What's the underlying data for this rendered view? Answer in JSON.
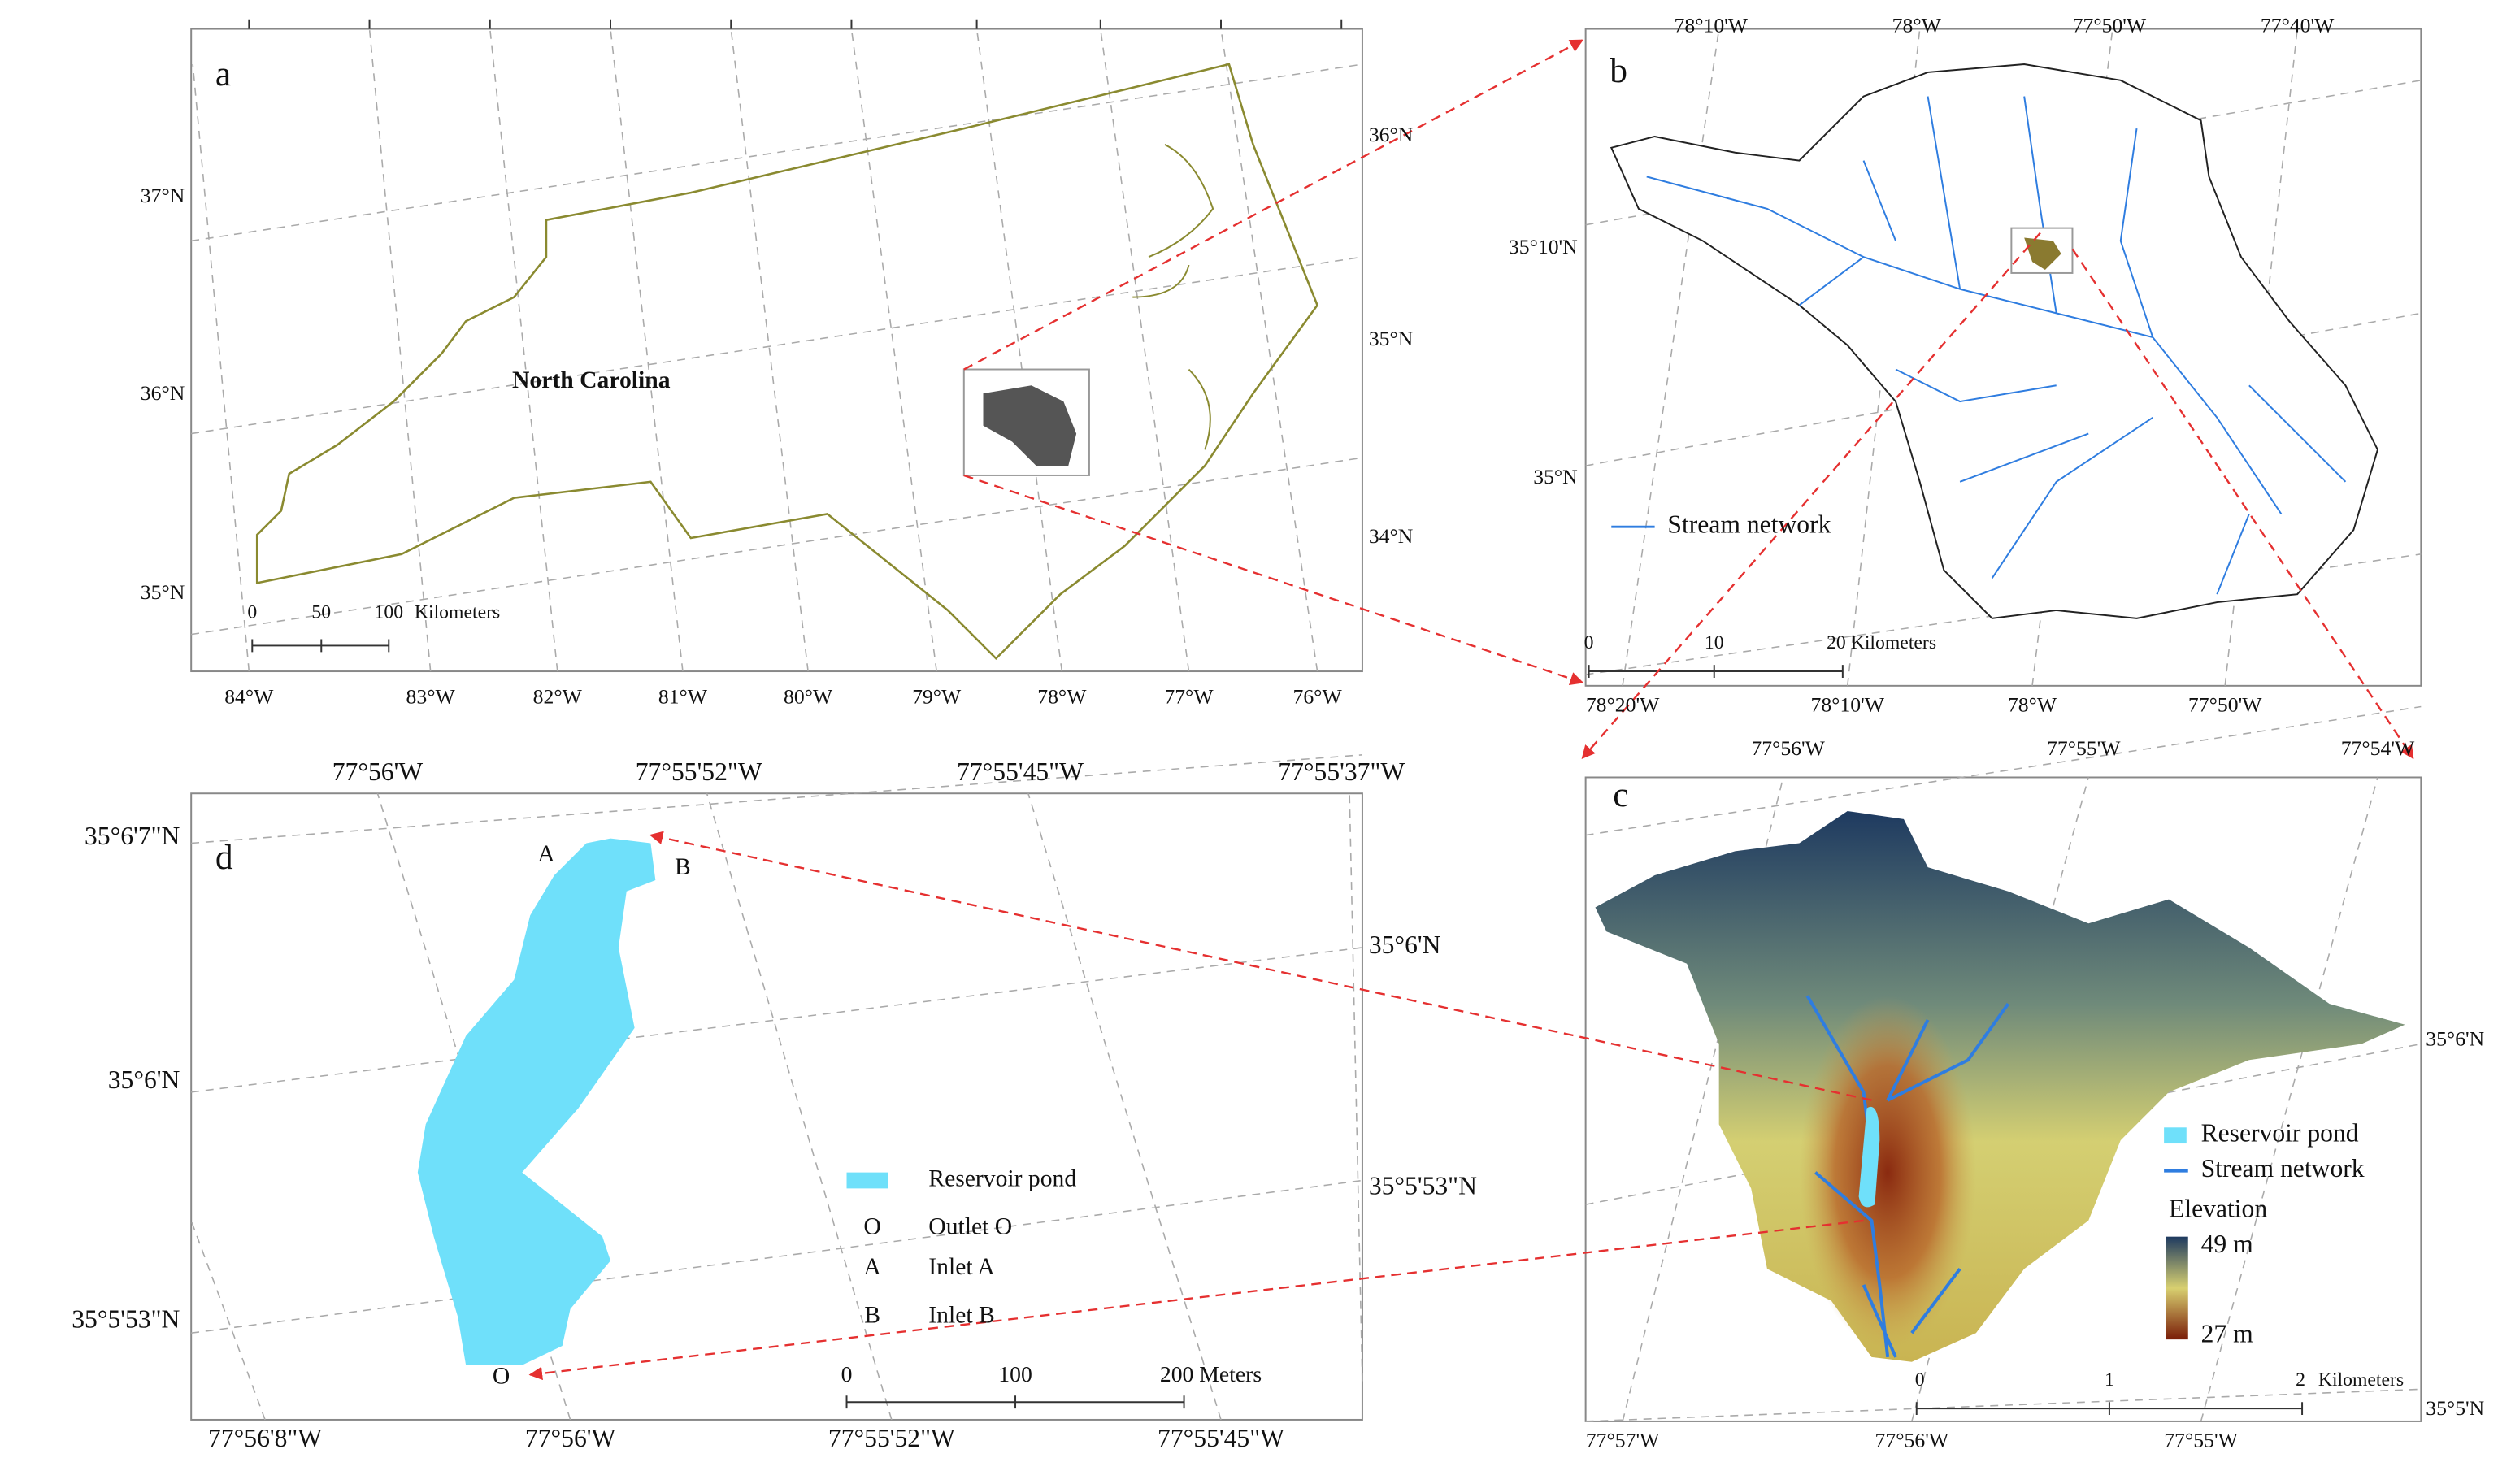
{
  "panels": {
    "a": {
      "label": "a",
      "title": "North Carolina",
      "lon_bottom": [
        "84°W",
        "83°W",
        "82°W",
        "81°W",
        "80°W",
        "79°W",
        "78°W",
        "77°W",
        "76°W"
      ],
      "lat_left": [
        "37°N",
        "36°N",
        "35°N"
      ],
      "lat_right": [
        "36°N",
        "35°N",
        "34°N"
      ],
      "scale_bar": [
        "0",
        "50",
        "100",
        "Kilometers"
      ]
    },
    "b": {
      "label": "b",
      "lon_top": [
        "78°10'W",
        "78°W",
        "77°50'W",
        "77°40'W"
      ],
      "lat_left": [
        "35°10'N",
        "35°N"
      ],
      "lon_bottom": [
        "78°20'W",
        "78°10'W",
        "78°W",
        "77°50'W"
      ],
      "legend": [
        "Stream network"
      ],
      "scale_bar": [
        "0",
        "10",
        "20",
        "Kilometers"
      ]
    },
    "c": {
      "label": "c",
      "lon_top": [
        "77°56'W",
        "77°55'W",
        "77°54'W"
      ],
      "lat_right": [
        "35°6'N",
        "35°5'N"
      ],
      "lon_bottom": [
        "77°57'W",
        "77°56'W",
        "77°55'W"
      ],
      "legend": [
        "Reservoir pond",
        "Stream network",
        "Elevation",
        "49 m",
        "27 m"
      ],
      "scale_bar": [
        "0",
        "1",
        "2",
        "Kilometers"
      ]
    },
    "d": {
      "label": "d",
      "lon_top": [
        "77°56'W",
        "77°55'52\"W",
        "77°55'45\"W",
        "77°55'37\"W"
      ],
      "lat_left": [
        "35°6'7\"N",
        "35°6'N",
        "35°5'53\"N"
      ],
      "lat_right": [
        "35°6'N",
        "35°5'53\"N"
      ],
      "lon_bottom": [
        "77°56'8\"W",
        "77°56'W",
        "77°55'52\"W",
        "77°55'45\"W"
      ],
      "points": [
        "A",
        "B",
        "O"
      ],
      "legend": [
        "Reservoir pond",
        "O",
        "Outlet O",
        "A",
        "Inlet A",
        "B",
        "Inlet B"
      ],
      "scale_bar": [
        "0",
        "100",
        "200 Meters"
      ]
    }
  }
}
